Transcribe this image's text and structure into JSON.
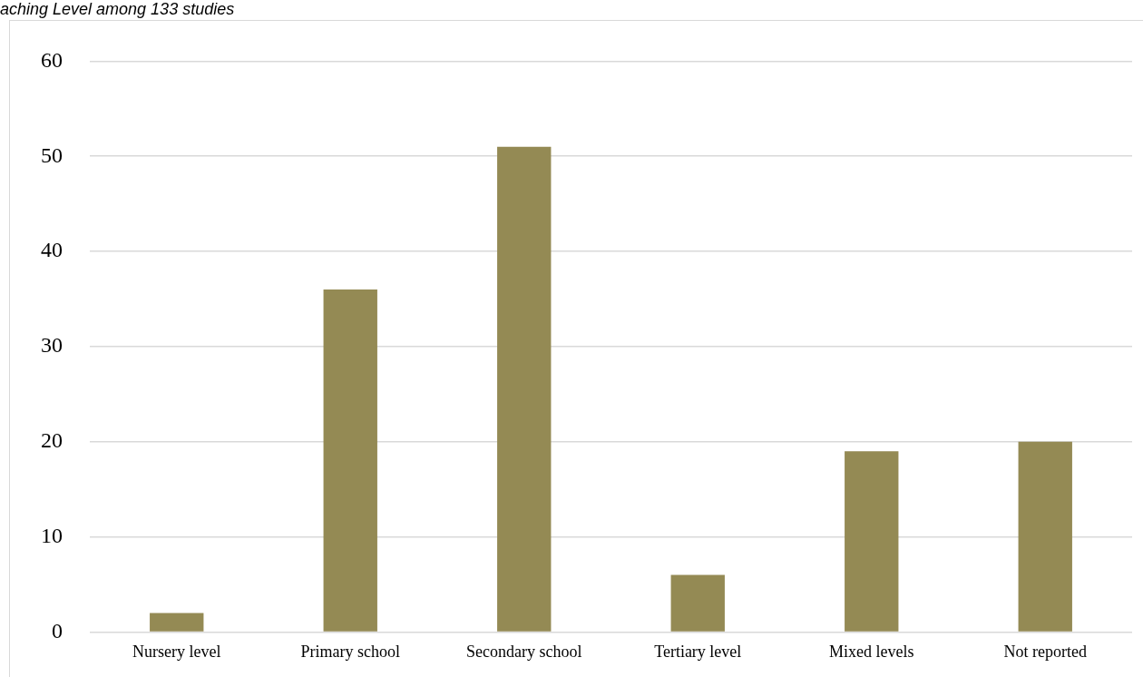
{
  "chart_data": {
    "type": "bar",
    "title": "aching Level among 133 studies",
    "categories": [
      "Nursery level",
      "Primary school",
      "Secondary school",
      "Tertiary level",
      "Mixed levels",
      "Not reported"
    ],
    "values": [
      2,
      36,
      51,
      6,
      19,
      20
    ],
    "color": "#948a54",
    "ylim": [
      0,
      60
    ],
    "yticks": [
      0,
      10,
      20,
      30,
      40,
      50,
      60
    ],
    "grid": "y",
    "legend": false
  }
}
